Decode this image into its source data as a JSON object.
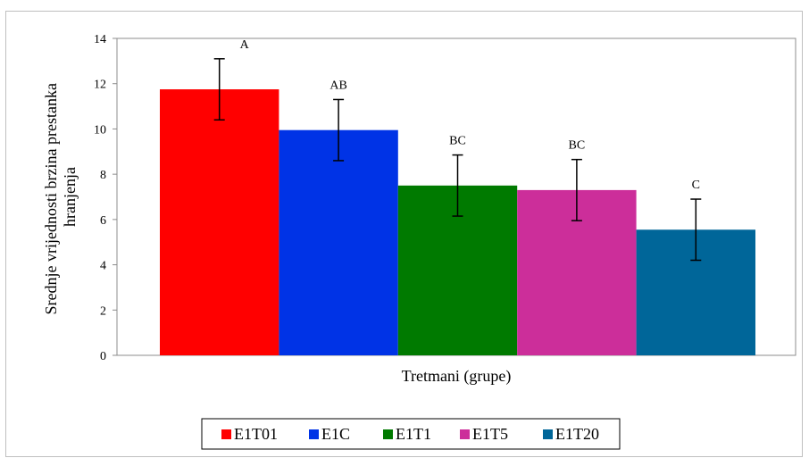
{
  "chart_data": {
    "type": "bar",
    "xlabel": "Tretmani (grupe)",
    "ylabel_lines": [
      "Srednje vrijednosti brzina prestanka",
      "hranjenja"
    ],
    "ylim": [
      0,
      14
    ],
    "yticks": [
      "0",
      "2",
      "4",
      "6",
      "8",
      "10",
      "12",
      "14"
    ],
    "grid": false,
    "legend_position": "bottom",
    "series": [
      {
        "name": "E1T01",
        "value": 11.75,
        "error": 1.35,
        "label": "A",
        "color": "#ff0000"
      },
      {
        "name": "E1C",
        "value": 9.95,
        "error": 1.35,
        "label": "AB",
        "color": "#0033e6"
      },
      {
        "name": "E1T1",
        "value": 7.5,
        "error": 1.35,
        "label": "BC",
        "color": "#007a00"
      },
      {
        "name": "E1T5",
        "value": 7.3,
        "error": 1.35,
        "label": "BC",
        "color": "#cc2e9a"
      },
      {
        "name": "E1T20",
        "value": 5.55,
        "error": 1.35,
        "label": "C",
        "color": "#006699"
      }
    ]
  }
}
